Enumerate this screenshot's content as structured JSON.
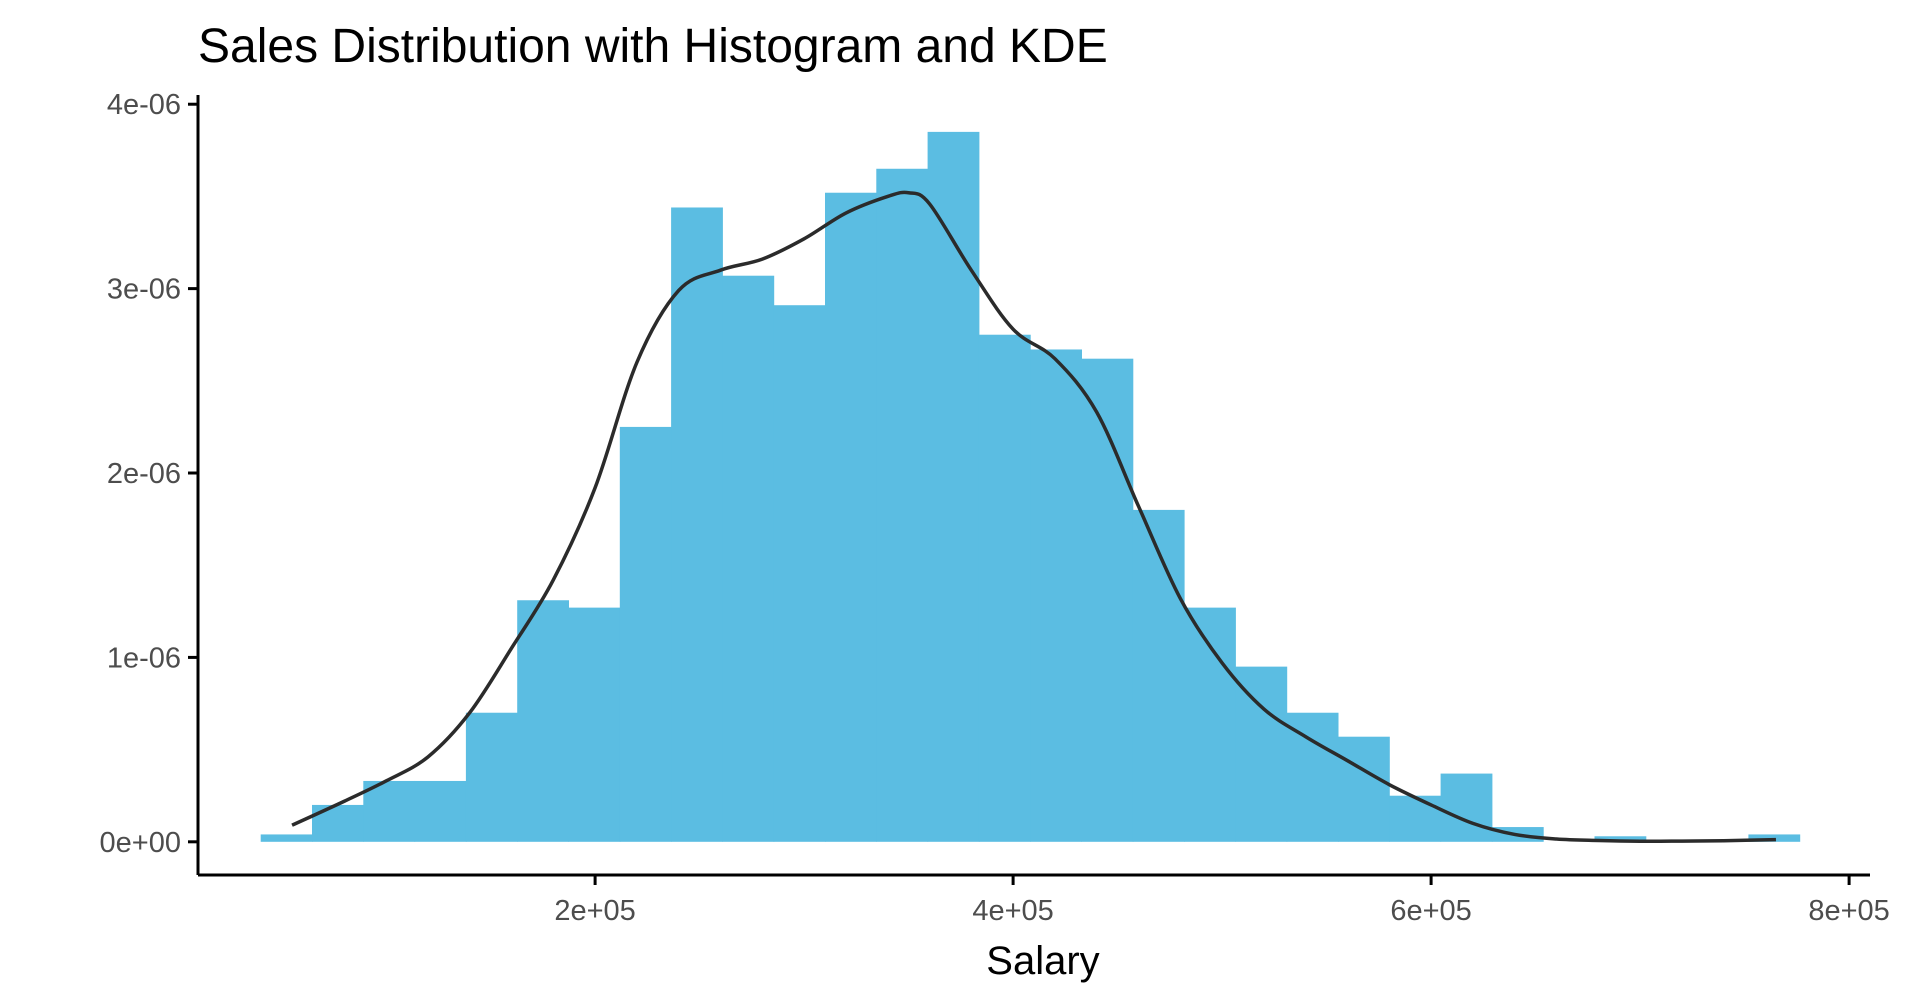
{
  "chart_data": {
    "type": "bar",
    "title": "Sales Distribution with Histogram and KDE",
    "xlabel": "Salary",
    "ylabel": "",
    "xlim": [
      10000,
      810000
    ],
    "ylim": [
      -1.8e-07,
      4.05e-06
    ],
    "x_ticks": [
      {
        "value": 200000,
        "label": "2e+05"
      },
      {
        "value": 400000,
        "label": "4e+05"
      },
      {
        "value": 600000,
        "label": "6e+05"
      },
      {
        "value": 800000,
        "label": "8e+05"
      }
    ],
    "y_ticks": [
      {
        "value": 0,
        "label": "0e+00"
      },
      {
        "value": 1e-06,
        "label": "1e-06"
      },
      {
        "value": 2e-06,
        "label": "2e-06"
      },
      {
        "value": 3e-06,
        "label": "3e-06"
      },
      {
        "value": 4e-06,
        "label": "4e-06"
      }
    ],
    "bin_edges": [
      40000,
      64545,
      89091,
      113636,
      138182,
      162727,
      187273,
      211818,
      236364,
      260909,
      285455,
      310000,
      334545,
      359091,
      383636,
      408182,
      432727,
      457273,
      481818,
      506364,
      530909,
      555455,
      580000,
      604545,
      629091,
      653636,
      678182,
      702727,
      727273,
      751818,
      776364
    ],
    "values": [
      4e-08,
      2e-07,
      3.3e-07,
      3.3e-07,
      7e-07,
      1.31e-06,
      1.27e-06,
      2.25e-06,
      3.44e-06,
      3.07e-06,
      2.91e-06,
      3.52e-06,
      3.65e-06,
      3.85e-06,
      2.75e-06,
      2.67e-06,
      2.62e-06,
      1.8e-06,
      1.27e-06,
      9.5e-07,
      7e-07,
      5.7e-07,
      2.5e-07,
      3.7e-07,
      8e-08,
      0,
      3e-08,
      0,
      0,
      4e-08
    ],
    "kde": {
      "x": [
        55000,
        80000,
        100000,
        120000,
        140000,
        160000,
        180000,
        200000,
        220000,
        240000,
        260000,
        280000,
        300000,
        320000,
        340000,
        350000,
        360000,
        380000,
        400000,
        420000,
        440000,
        460000,
        480000,
        500000,
        520000,
        540000,
        560000,
        580000,
        600000,
        620000,
        640000,
        660000,
        680000,
        700000,
        720000,
        740000,
        765000
      ],
      "y": [
        9e-08,
        2.2e-07,
        3.3e-07,
        4.6e-07,
        7e-07,
        1.05e-06,
        1.42e-06,
        1.92e-06,
        2.6e-06,
        2.99e-06,
        3.1e-06,
        3.16e-06,
        3.27e-06,
        3.41e-06,
        3.5e-06,
        3.52e-06,
        3.46e-06,
        3.1e-06,
        2.78e-06,
        2.62e-06,
        2.33e-06,
        1.82e-06,
        1.32e-06,
        9.7e-07,
        7.2e-07,
        5.7e-07,
        4.4e-07,
        3.1e-07,
        2e-07,
        1e-07,
        4e-08,
        1.5e-08,
        7e-09,
        3e-09,
        4e-09,
        6e-09,
        1.2e-08
      ]
    },
    "grid": false,
    "legend": "none",
    "colors": {
      "bar": "#5bbde2",
      "kde_line": "#2b2b2b",
      "axis": "#000000",
      "tick_label": "#4d4d4d"
    }
  }
}
